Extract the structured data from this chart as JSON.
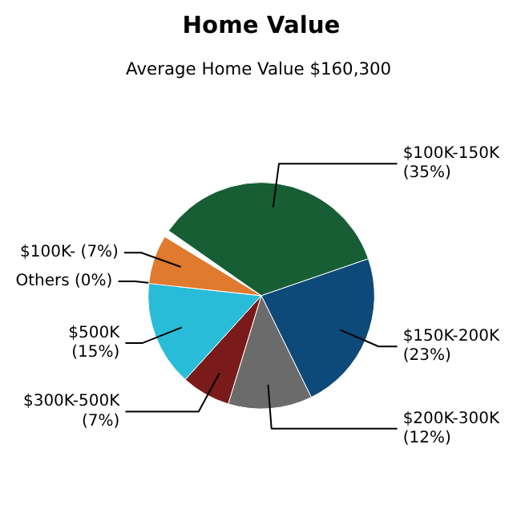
{
  "chart_data": {
    "type": "pie",
    "title": "Home Value",
    "subtitle": "Average Home Value  $160,300",
    "categories": [
      "$100K-150K",
      "$150K-200K",
      "$200K-300K",
      "$300K-500K",
      "$500K",
      "Others",
      "$100K-"
    ],
    "values": [
      35,
      23,
      12,
      7,
      15,
      0,
      7
    ],
    "value_labels": [
      "(35%)",
      "(23%)",
      "(12%)",
      "(7%)",
      "(15%)",
      "(0%)",
      "(7%)"
    ],
    "colors": [
      "#175e35",
      "#0d4a7a",
      "#6b6b6b",
      "#7a1a1a",
      "#29bcd8",
      "#999999",
      "#e07a2e"
    ]
  }
}
